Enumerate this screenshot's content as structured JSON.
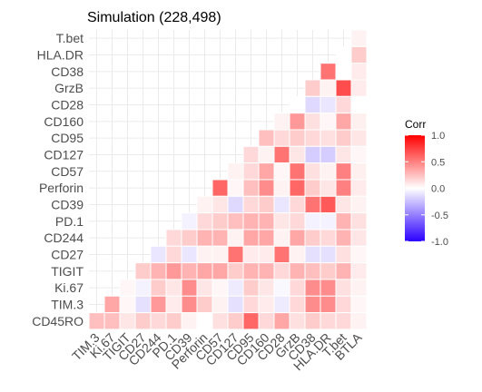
{
  "chart_data": {
    "type": "heatmap",
    "title": "Simulation (228,498)",
    "x_categories": [
      "TIM.3",
      "Ki.67",
      "TIGIT",
      "CD27",
      "CD244",
      "PD.1",
      "CD39",
      "Perforin",
      "CD57",
      "CD127",
      "CD95",
      "CD160",
      "CD28",
      "GrzB",
      "CD38",
      "HLA.DR",
      "T.bet",
      "BTLA"
    ],
    "y_categories": [
      "T.bet",
      "HLA.DR",
      "CD38",
      "GrzB",
      "CD28",
      "CD160",
      "CD95",
      "CD127",
      "CD57",
      "Perforin",
      "CD39",
      "PD.1",
      "CD244",
      "CD27",
      "TIGIT",
      "Ki.67",
      "TIM.3",
      "CD45RO"
    ],
    "cells": [
      [
        "T.bet",
        "BTLA",
        0.05
      ],
      [
        "HLA.DR",
        "T.bet",
        0.0
      ],
      [
        "HLA.DR",
        "BTLA",
        0.2
      ],
      [
        "CD38",
        "HLA.DR",
        0.55
      ],
      [
        "CD38",
        "T.bet",
        0.0
      ],
      [
        "CD38",
        "BTLA",
        0.08
      ],
      [
        "GrzB",
        "CD38",
        0.2
      ],
      [
        "GrzB",
        "HLA.DR",
        0.05
      ],
      [
        "GrzB",
        "T.bet",
        0.7
      ],
      [
        "GrzB",
        "BTLA",
        0.08
      ],
      [
        "CD28",
        "GrzB",
        0.0
      ],
      [
        "CD28",
        "CD38",
        -0.15
      ],
      [
        "CD28",
        "HLA.DR",
        -0.1
      ],
      [
        "CD28",
        "T.bet",
        0.15
      ],
      [
        "CD28",
        "BTLA",
        0.0
      ],
      [
        "CD160",
        "CD28",
        0.05
      ],
      [
        "CD160",
        "GrzB",
        0.4
      ],
      [
        "CD160",
        "CD38",
        0.12
      ],
      [
        "CD160",
        "HLA.DR",
        0.03
      ],
      [
        "CD160",
        "T.bet",
        0.35
      ],
      [
        "CD160",
        "BTLA",
        0.06
      ],
      [
        "CD95",
        "CD160",
        0.25
      ],
      [
        "CD95",
        "CD28",
        0.15
      ],
      [
        "CD95",
        "GrzB",
        0.2
      ],
      [
        "CD95",
        "CD38",
        0.15
      ],
      [
        "CD95",
        "HLA.DR",
        0.12
      ],
      [
        "CD95",
        "T.bet",
        0.2
      ],
      [
        "CD95",
        "BTLA",
        0.1
      ],
      [
        "CD127",
        "CD95",
        0.15
      ],
      [
        "CD127",
        "CD160",
        0.05
      ],
      [
        "CD127",
        "CD28",
        0.55
      ],
      [
        "CD127",
        "GrzB",
        0.1
      ],
      [
        "CD127",
        "CD38",
        -0.2
      ],
      [
        "CD127",
        "HLA.DR",
        -0.2
      ],
      [
        "CD127",
        "T.bet",
        0.1
      ],
      [
        "CD127",
        "BTLA",
        0.03
      ],
      [
        "CD57",
        "CD127",
        0.05
      ],
      [
        "CD57",
        "CD95",
        0.15
      ],
      [
        "CD57",
        "CD160",
        0.35
      ],
      [
        "CD57",
        "CD28",
        0.03
      ],
      [
        "CD57",
        "GrzB",
        0.55
      ],
      [
        "CD57",
        "CD38",
        0.12
      ],
      [
        "CD57",
        "HLA.DR",
        0.05
      ],
      [
        "CD57",
        "T.bet",
        0.5
      ],
      [
        "CD57",
        "BTLA",
        0.06
      ],
      [
        "Perforin",
        "CD57",
        0.6
      ],
      [
        "Perforin",
        "CD127",
        0.03
      ],
      [
        "Perforin",
        "CD95",
        0.25
      ],
      [
        "Perforin",
        "CD160",
        0.45
      ],
      [
        "Perforin",
        "CD28",
        0.05
      ],
      [
        "Perforin",
        "GrzB",
        0.6
      ],
      [
        "Perforin",
        "CD38",
        0.2
      ],
      [
        "Perforin",
        "HLA.DR",
        0.1
      ],
      [
        "Perforin",
        "T.bet",
        0.5
      ],
      [
        "Perforin",
        "BTLA",
        0.08
      ],
      [
        "CD39",
        "Perforin",
        0.05
      ],
      [
        "CD39",
        "CD57",
        0.1
      ],
      [
        "CD39",
        "CD127",
        -0.15
      ],
      [
        "CD39",
        "CD95",
        0.15
      ],
      [
        "CD39",
        "CD160",
        0.2
      ],
      [
        "CD39",
        "CD28",
        -0.1
      ],
      [
        "CD39",
        "GrzB",
        0.15
      ],
      [
        "CD39",
        "CD38",
        0.55
      ],
      [
        "CD39",
        "HLA.DR",
        0.65
      ],
      [
        "CD39",
        "T.bet",
        0.1
      ],
      [
        "CD39",
        "BTLA",
        0.05
      ],
      [
        "PD.1",
        "CD39",
        -0.05
      ],
      [
        "PD.1",
        "Perforin",
        0.15
      ],
      [
        "PD.1",
        "CD57",
        0.2
      ],
      [
        "PD.1",
        "CD127",
        0.25
      ],
      [
        "PD.1",
        "CD95",
        0.3
      ],
      [
        "PD.1",
        "CD160",
        0.3
      ],
      [
        "PD.1",
        "CD28",
        0.1
      ],
      [
        "PD.1",
        "GrzB",
        0.15
      ],
      [
        "PD.1",
        "CD38",
        -0.05
      ],
      [
        "PD.1",
        "HLA.DR",
        -0.05
      ],
      [
        "PD.1",
        "T.bet",
        0.3
      ],
      [
        "PD.1",
        "BTLA",
        0.12
      ],
      [
        "CD244",
        "PD.1",
        0.15
      ],
      [
        "CD244",
        "CD39",
        0.2
      ],
      [
        "CD244",
        "Perforin",
        0.3
      ],
      [
        "CD244",
        "CD57",
        0.3
      ],
      [
        "CD244",
        "CD127",
        0.05
      ],
      [
        "CD244",
        "CD95",
        0.35
      ],
      [
        "CD244",
        "CD160",
        0.35
      ],
      [
        "CD244",
        "CD28",
        0.05
      ],
      [
        "CD244",
        "GrzB",
        0.35
      ],
      [
        "CD244",
        "CD38",
        0.2
      ],
      [
        "CD244",
        "HLA.DR",
        0.15
      ],
      [
        "CD244",
        "T.bet",
        0.3
      ],
      [
        "CD244",
        "BTLA",
        0.1
      ],
      [
        "CD27",
        "CD244",
        -0.1
      ],
      [
        "CD27",
        "PD.1",
        0.15
      ],
      [
        "CD27",
        "CD39",
        -0.1
      ],
      [
        "CD27",
        "Perforin",
        0.05
      ],
      [
        "CD27",
        "CD57",
        0.05
      ],
      [
        "CD27",
        "CD127",
        0.55
      ],
      [
        "CD27",
        "CD95",
        0.08
      ],
      [
        "CD27",
        "CD160",
        0.08
      ],
      [
        "CD27",
        "CD28",
        0.55
      ],
      [
        "CD27",
        "GrzB",
        0.05
      ],
      [
        "CD27",
        "CD38",
        -0.12
      ],
      [
        "CD27",
        "HLA.DR",
        -0.12
      ],
      [
        "CD27",
        "T.bet",
        0.12
      ],
      [
        "CD27",
        "BTLA",
        0.03
      ],
      [
        "TIGIT",
        "CD27",
        0.2
      ],
      [
        "TIGIT",
        "CD244",
        0.3
      ],
      [
        "TIGIT",
        "PD.1",
        0.4
      ],
      [
        "TIGIT",
        "CD39",
        0.3
      ],
      [
        "TIGIT",
        "Perforin",
        0.35
      ],
      [
        "TIGIT",
        "CD57",
        0.35
      ],
      [
        "TIGIT",
        "CD127",
        0.2
      ],
      [
        "TIGIT",
        "CD95",
        0.3
      ],
      [
        "TIGIT",
        "CD160",
        0.3
      ],
      [
        "TIGIT",
        "CD28",
        0.15
      ],
      [
        "TIGIT",
        "GrzB",
        0.3
      ],
      [
        "TIGIT",
        "CD38",
        0.25
      ],
      [
        "TIGIT",
        "HLA.DR",
        0.2
      ],
      [
        "TIGIT",
        "T.bet",
        0.3
      ],
      [
        "TIGIT",
        "BTLA",
        0.08
      ],
      [
        "Ki.67",
        "TIGIT",
        0.03
      ],
      [
        "Ki.67",
        "CD27",
        -0.05
      ],
      [
        "Ki.67",
        "CD244",
        0.2
      ],
      [
        "Ki.67",
        "PD.1",
        0.1
      ],
      [
        "Ki.67",
        "CD39",
        0.45
      ],
      [
        "Ki.67",
        "Perforin",
        0.1
      ],
      [
        "Ki.67",
        "CD57",
        0.03
      ],
      [
        "Ki.67",
        "CD127",
        -0.08
      ],
      [
        "Ki.67",
        "CD95",
        0.2
      ],
      [
        "Ki.67",
        "CD160",
        0.1
      ],
      [
        "Ki.67",
        "CD28",
        -0.03
      ],
      [
        "Ki.67",
        "GrzB",
        0.15
      ],
      [
        "Ki.67",
        "CD38",
        0.45
      ],
      [
        "Ki.67",
        "HLA.DR",
        0.45
      ],
      [
        "Ki.67",
        "T.bet",
        0.12
      ],
      [
        "Ki.67",
        "BTLA",
        0.05
      ],
      [
        "TIM.3",
        "Ki.67",
        0.35
      ],
      [
        "TIM.3",
        "TIGIT",
        0.03
      ],
      [
        "TIM.3",
        "CD27",
        -0.12
      ],
      [
        "TIM.3",
        "CD244",
        0.4
      ],
      [
        "TIM.3",
        "PD.1",
        0.08
      ],
      [
        "TIM.3",
        "CD39",
        0.45
      ],
      [
        "TIM.3",
        "Perforin",
        0.2
      ],
      [
        "TIM.3",
        "CD57",
        0.05
      ],
      [
        "TIM.3",
        "CD127",
        -0.12
      ],
      [
        "TIM.3",
        "CD95",
        0.15
      ],
      [
        "TIM.3",
        "CD160",
        0.08
      ],
      [
        "TIM.3",
        "CD28",
        -0.08
      ],
      [
        "TIM.3",
        "GrzB",
        0.15
      ],
      [
        "TIM.3",
        "CD38",
        0.45
      ],
      [
        "TIM.3",
        "HLA.DR",
        0.45
      ],
      [
        "TIM.3",
        "T.bet",
        0.15
      ],
      [
        "TIM.3",
        "BTLA",
        0.03
      ],
      [
        "CD45RO",
        "TIM.3",
        0.25
      ],
      [
        "CD45RO",
        "Ki.67",
        0.25
      ],
      [
        "CD45RO",
        "TIGIT",
        0.1
      ],
      [
        "CD45RO",
        "CD27",
        0.2
      ],
      [
        "CD45RO",
        "CD244",
        0.15
      ],
      [
        "CD45RO",
        "PD.1",
        0.2
      ],
      [
        "CD45RO",
        "CD39",
        0.05
      ],
      [
        "CD45RO",
        "Perforin",
        0.0
      ],
      [
        "CD45RO",
        "CD57",
        0.12
      ],
      [
        "CD45RO",
        "CD127",
        0.2
      ],
      [
        "CD45RO",
        "CD95",
        0.6
      ],
      [
        "CD45RO",
        "CD160",
        0.15
      ],
      [
        "CD45RO",
        "CD28",
        0.35
      ],
      [
        "CD45RO",
        "GrzB",
        0.12
      ],
      [
        "CD45RO",
        "CD38",
        0.2
      ],
      [
        "CD45RO",
        "HLA.DR",
        0.15
      ],
      [
        "CD45RO",
        "T.bet",
        0.15
      ],
      [
        "CD45RO",
        "BTLA",
        0.05
      ]
    ],
    "color_scale": {
      "low": "#2b00ff",
      "mid": "#ffffff",
      "high": "#ff0000",
      "limits": [
        -1,
        1
      ]
    },
    "legend": {
      "title": "Corr",
      "ticks": [
        "1.0",
        "0.5",
        "0.0",
        "-0.5",
        "-1.0"
      ],
      "tick_values": [
        1,
        0.5,
        0,
        -0.5,
        -1
      ],
      "placement": "right"
    },
    "grid": true
  }
}
